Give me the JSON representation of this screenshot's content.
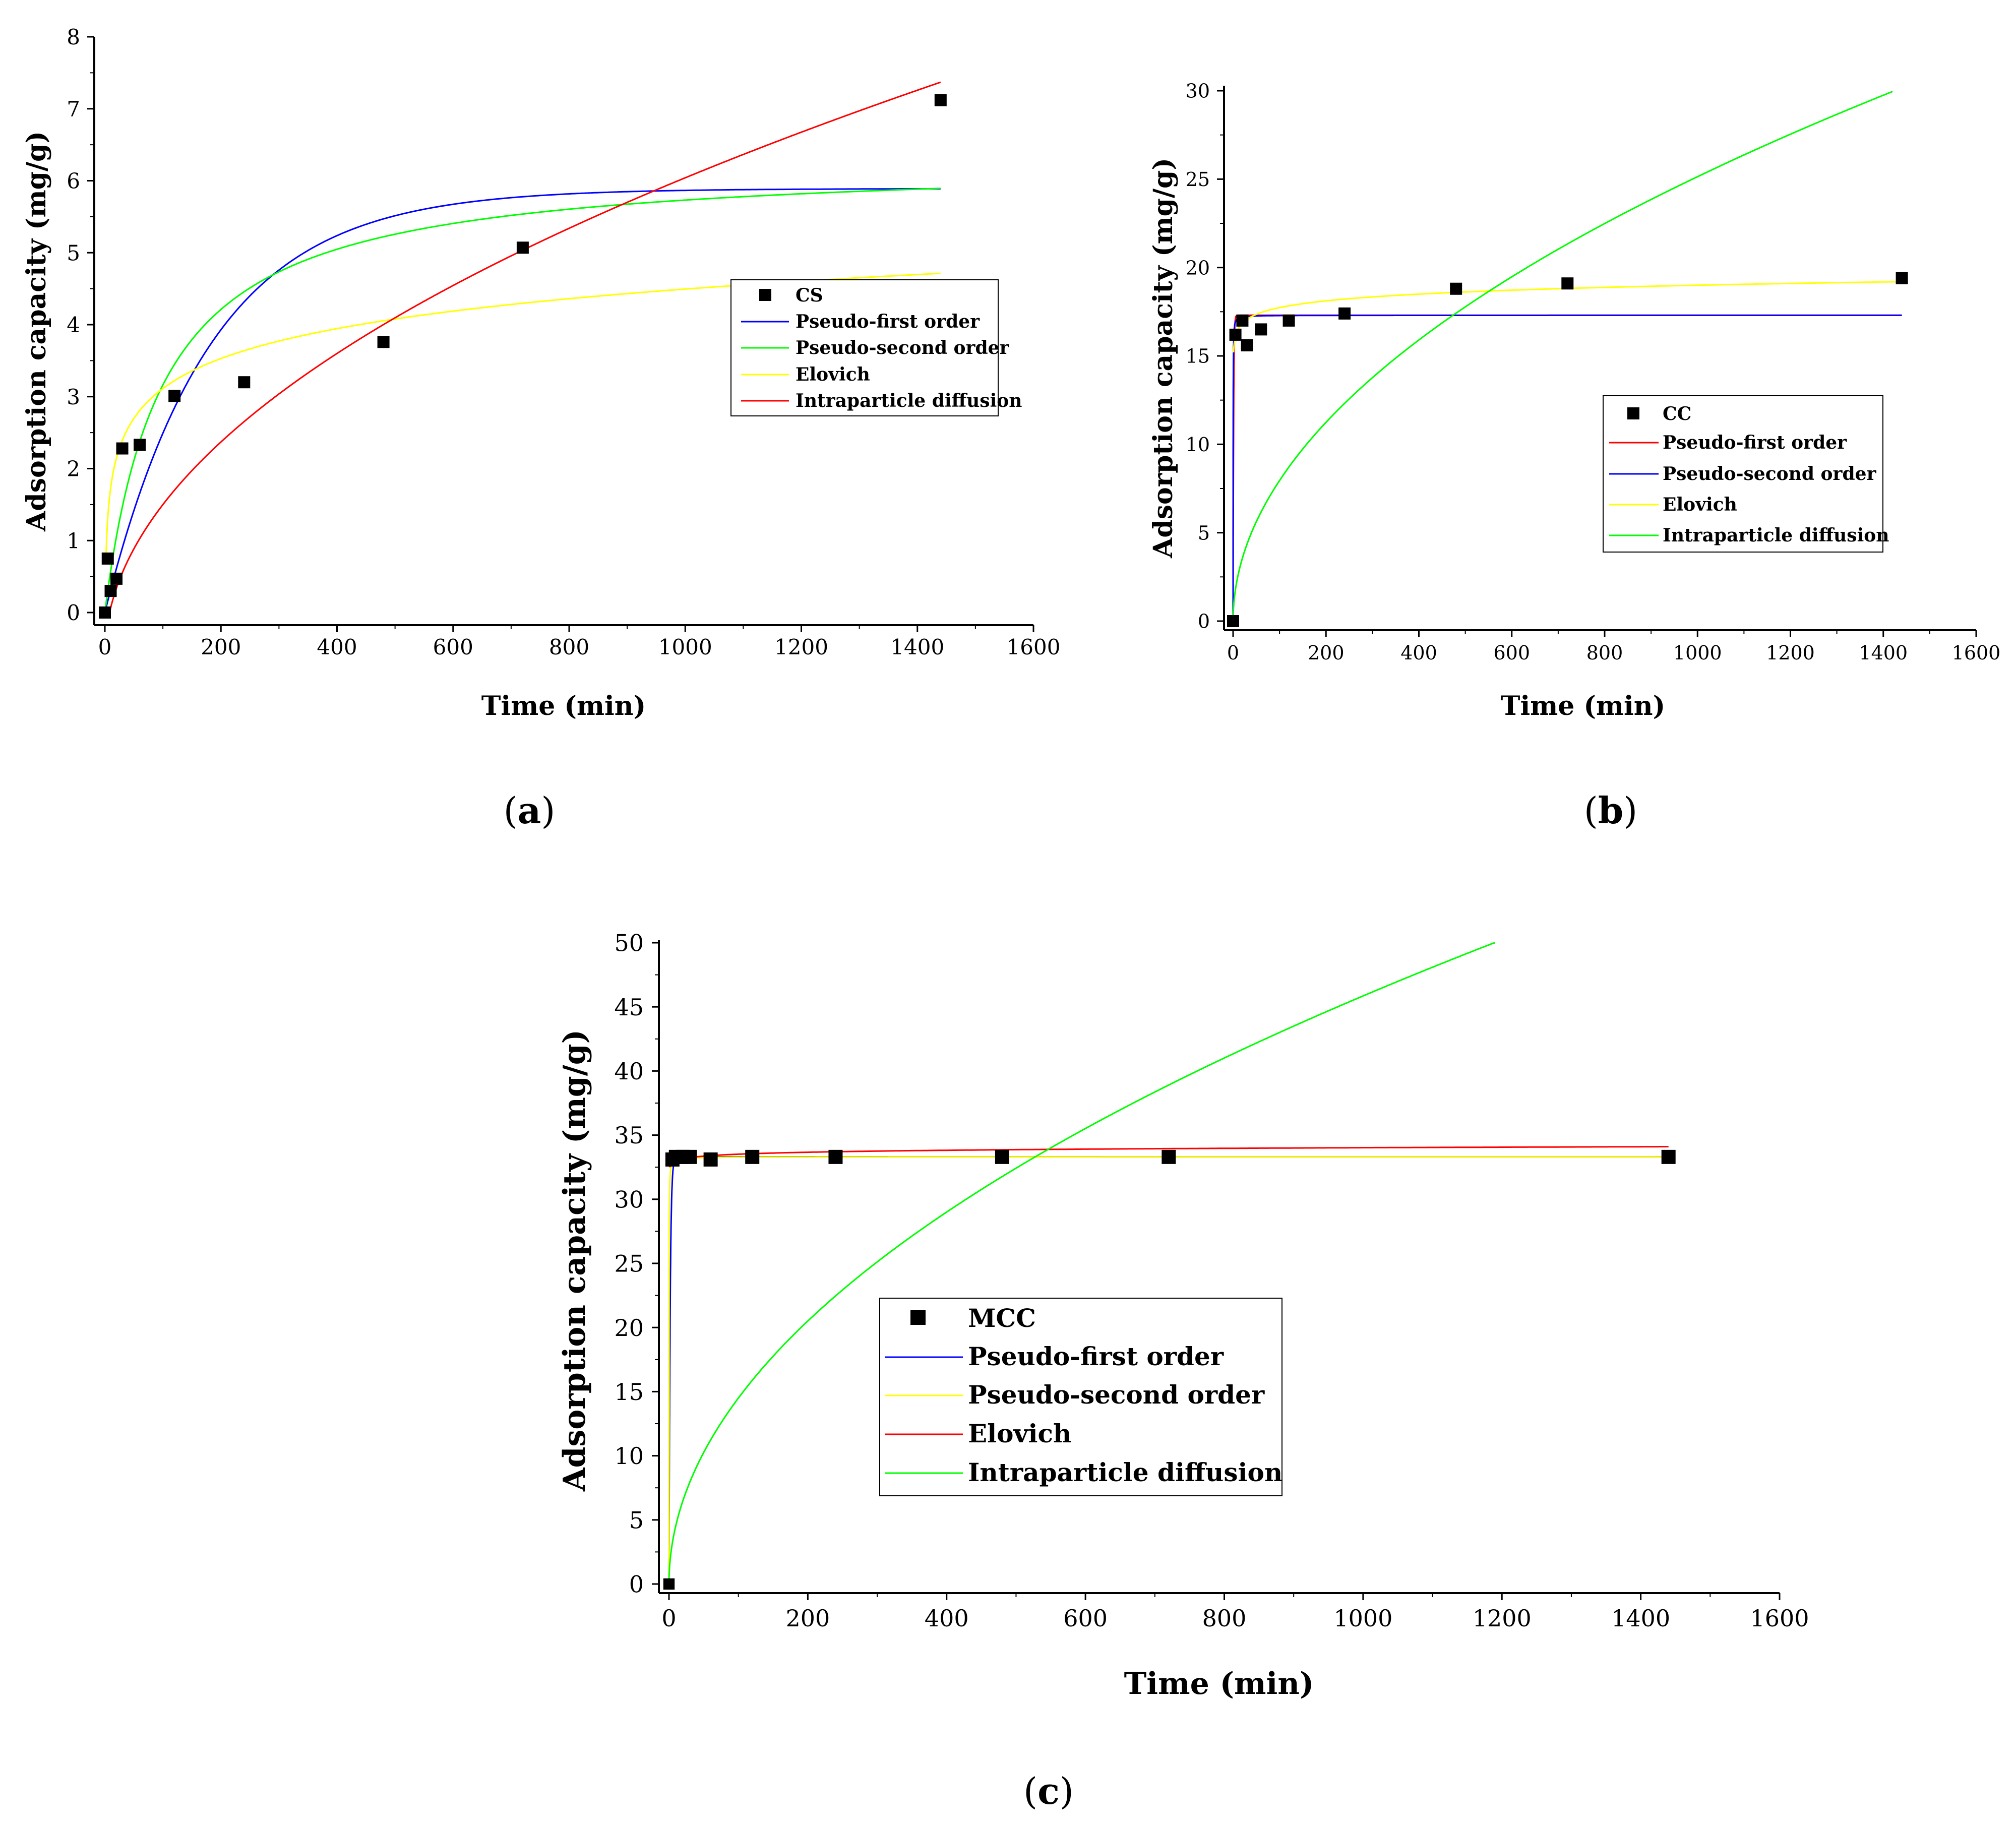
{
  "chart_data": [
    {
      "type": "scatter",
      "panel_label": "a",
      "xlabel": "Time (min)",
      "ylabel": "Adsorption capacity (mg/g)",
      "xlim": [
        0,
        1600
      ],
      "ylim": [
        0,
        8
      ],
      "x_ticks": [
        0,
        200,
        400,
        600,
        800,
        1000,
        1200,
        1400,
        1600
      ],
      "y_ticks": [
        0,
        1,
        2,
        3,
        4,
        5,
        6,
        7,
        8
      ],
      "legend": {
        "points_label": "CS",
        "series_labels": [
          "Pseudo-first order",
          "Pseudo-second order",
          "Elovich",
          "Intraparticle diffusion"
        ],
        "series_colors": [
          "#0000ff",
          "#00ff00",
          "#ffff00",
          "#ff0000"
        ]
      },
      "points": {
        "x": [
          0,
          5,
          10,
          20,
          30,
          60,
          120,
          240,
          480,
          720,
          1440
        ],
        "y": [
          0.0,
          0.75,
          0.3,
          0.47,
          2.28,
          2.33,
          3.01,
          3.2,
          3.76,
          5.07,
          7.12
        ]
      },
      "series": [
        {
          "name": "Pseudo-first order",
          "model": "pfo",
          "qe": 5.89,
          "k": 0.0055,
          "x_start": 0,
          "x_end": 1440
        },
        {
          "name": "Pseudo-second order",
          "model": "pso",
          "qe": 6.3,
          "k": 0.0016,
          "x_start": 0,
          "x_end": 1440
        },
        {
          "name": "Elovich",
          "model": "elovich",
          "a": 0.35,
          "b": 0.6,
          "x_start": 2,
          "x_end": 1440
        },
        {
          "name": "Intraparticle diffusion",
          "model": "ipd",
          "kid": 0.21,
          "c": -0.6,
          "x_start": 0,
          "x_end": 1440
        }
      ]
    },
    {
      "type": "scatter",
      "panel_label": "b",
      "xlabel": "Time (min)",
      "ylabel": "Adsorption capacity (mg/g)",
      "xlim": [
        0,
        1600
      ],
      "ylim": [
        0,
        30
      ],
      "x_ticks": [
        0,
        200,
        400,
        600,
        800,
        1000,
        1200,
        1400,
        1600
      ],
      "y_ticks": [
        0,
        5,
        10,
        15,
        20,
        25,
        30
      ],
      "legend": {
        "points_label": "CC",
        "series_labels": [
          "Pseudo-first order",
          "Pseudo-second order",
          "Elovich",
          "Intraparticle diffusion"
        ],
        "series_colors": [
          "#ff0000",
          "#0000ff",
          "#ffff00",
          "#00ff00"
        ]
      },
      "points": {
        "x": [
          0,
          5,
          20,
          30,
          60,
          120,
          240,
          480,
          720,
          1440
        ],
        "y": [
          0.0,
          16.2,
          17.0,
          15.6,
          16.5,
          17.0,
          17.4,
          18.8,
          19.1,
          19.4
        ]
      },
      "series": [
        {
          "name": "Pseudo-first order",
          "model": "pfo",
          "qe": 17.3,
          "k": 0.9,
          "x_start": 0,
          "x_end": 1440
        },
        {
          "name": "Pseudo-second order",
          "model": "pso",
          "qe": 17.3,
          "k": 0.5,
          "x_start": 0,
          "x_end": 1440
        },
        {
          "name": "Elovich",
          "model": "elovich",
          "a": 15.2,
          "b": 0.55,
          "x_start": 1,
          "x_end": 1440
        },
        {
          "name": "Intraparticle diffusion",
          "model": "ipd",
          "kid": 0.795,
          "c": 0,
          "x_start": 0,
          "x_end": 1420
        }
      ]
    },
    {
      "type": "scatter",
      "panel_label": "c",
      "xlabel": "Time (min)",
      "ylabel": "Adsorption capacity (mg/g)",
      "xlim": [
        0,
        1600
      ],
      "ylim": [
        0,
        50
      ],
      "x_ticks": [
        0,
        200,
        400,
        600,
        800,
        1000,
        1200,
        1400,
        1600
      ],
      "y_ticks": [
        0,
        5,
        10,
        15,
        20,
        25,
        30,
        35,
        40,
        45,
        50
      ],
      "legend": {
        "points_label": "MCC",
        "series_labels": [
          "Pseudo-first order",
          "Pseudo-second order",
          "Elovich",
          "Intraparticle diffusion"
        ],
        "series_colors": [
          "#0000ff",
          "#ffff00",
          "#ff0000",
          "#00ff00"
        ]
      },
      "points": {
        "x": [
          0,
          5,
          10,
          20,
          30,
          60,
          120,
          240,
          480,
          720,
          1440
        ],
        "y": [
          0.0,
          33.1,
          33.3,
          33.3,
          33.3,
          33.1,
          33.3,
          33.3,
          33.3,
          33.3,
          33.3
        ],
        "point_markers": [
          "square-small",
          "square",
          "square",
          "square",
          "square",
          "square",
          "square",
          "square",
          "square",
          "square",
          "square"
        ]
      },
      "series": [
        {
          "name": "Pseudo-first order",
          "model": "pfo",
          "qe": 33.3,
          "k": 0.6,
          "x_start": 0,
          "x_end": 1440
        },
        {
          "name": "Pseudo-second order",
          "model": "pso",
          "qe": 33.3,
          "k": 0.4,
          "x_start": 0,
          "x_end": 1440
        },
        {
          "name": "Elovich",
          "model": "elovich",
          "a": 32.5,
          "b": 0.22,
          "x_start": 1,
          "x_end": 1440
        },
        {
          "name": "Intraparticle diffusion",
          "model": "ipd",
          "kid": 1.45,
          "c": 0,
          "x_start": 0,
          "x_end": 1190
        }
      ]
    }
  ]
}
